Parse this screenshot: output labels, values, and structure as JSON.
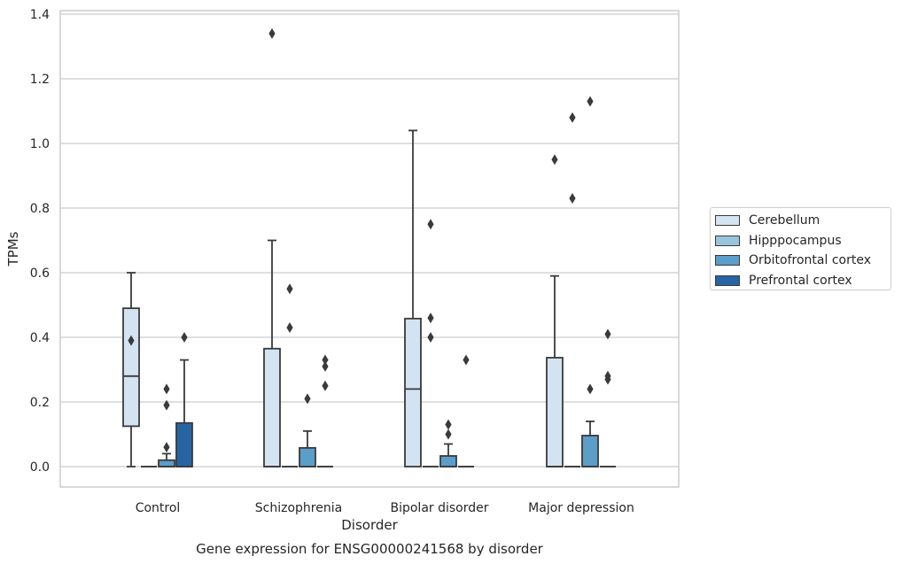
{
  "chart_data": {
    "type": "box",
    "title": "",
    "caption": "Gene expression for ENSG00000241568 by disorder",
    "xlabel": "Disorder",
    "ylabel": "TPMs",
    "ylim": [
      -0.065,
      1.41
    ],
    "yticks": [
      0.0,
      0.2,
      0.4,
      0.6,
      0.8,
      1.0,
      1.2,
      1.4
    ],
    "ytick_labels": [
      "0.0",
      "0.2",
      "0.4",
      "0.6",
      "0.8",
      "1.0",
      "1.2",
      "1.4"
    ],
    "grid": "horizontal",
    "legend_position": "right",
    "categories": [
      "Control",
      "Schizophrenia",
      "Bipolar disorder",
      "Major depression"
    ],
    "series": [
      {
        "name": "Cerebellum",
        "color": "#d4e3f1",
        "boxes": [
          {
            "q1": 0.125,
            "median": 0.28,
            "q3": 0.49,
            "whisker_low": 0.0,
            "whisker_high": 0.6,
            "fliers": [
              0.39
            ]
          },
          {
            "q1": 0.0,
            "median": 0.0,
            "q3": 0.365,
            "whisker_low": 0.0,
            "whisker_high": 0.7,
            "fliers": [
              1.34
            ]
          },
          {
            "q1": 0.0,
            "median": 0.24,
            "q3": 0.458,
            "whisker_low": 0.0,
            "whisker_high": 1.04,
            "fliers": []
          },
          {
            "q1": 0.0,
            "median": 0.0,
            "q3": 0.337,
            "whisker_low": 0.0,
            "whisker_high": 0.59,
            "fliers": [
              0.95
            ]
          }
        ]
      },
      {
        "name": "Hipppocampus",
        "color": "#9ac3dc",
        "boxes": [
          {
            "q1": 0.0,
            "median": 0.0,
            "q3": 0.0,
            "whisker_low": 0.0,
            "whisker_high": 0.0,
            "fliers": []
          },
          {
            "q1": 0.0,
            "median": 0.0,
            "q3": 0.0,
            "whisker_low": 0.0,
            "whisker_high": 0.0,
            "fliers": [
              0.55,
              0.43
            ]
          },
          {
            "q1": 0.0,
            "median": 0.0,
            "q3": 0.0,
            "whisker_low": 0.0,
            "whisker_high": 0.0,
            "fliers": [
              0.75,
              0.46,
              0.4
            ]
          },
          {
            "q1": 0.0,
            "median": 0.0,
            "q3": 0.0,
            "whisker_low": 0.0,
            "whisker_high": 0.0,
            "fliers": [
              1.08,
              0.83
            ]
          }
        ]
      },
      {
        "name": "Orbitofrontal cortex",
        "color": "#5a9ec9",
        "boxes": [
          {
            "q1": 0.0,
            "median": 0.0,
            "q3": 0.02,
            "whisker_low": 0.0,
            "whisker_high": 0.04,
            "fliers": [
              0.24,
              0.19,
              0.06
            ]
          },
          {
            "q1": 0.0,
            "median": 0.0,
            "q3": 0.058,
            "whisker_low": 0.0,
            "whisker_high": 0.11,
            "fliers": [
              0.21
            ]
          },
          {
            "q1": 0.0,
            "median": 0.0,
            "q3": 0.033,
            "whisker_low": 0.0,
            "whisker_high": 0.07,
            "fliers": [
              0.13,
              0.1
            ]
          },
          {
            "q1": 0.0,
            "median": 0.0,
            "q3": 0.096,
            "whisker_low": 0.0,
            "whisker_high": 0.14,
            "fliers": [
              1.13,
              0.24
            ]
          }
        ]
      },
      {
        "name": "Prefrontal cortex",
        "color": "#2764a4",
        "boxes": [
          {
            "q1": 0.0,
            "median": 0.0,
            "q3": 0.135,
            "whisker_low": 0.0,
            "whisker_high": 0.33,
            "fliers": [
              0.4
            ]
          },
          {
            "q1": 0.0,
            "median": 0.0,
            "q3": 0.0,
            "whisker_low": 0.0,
            "whisker_high": 0.0,
            "fliers": [
              0.33,
              0.31,
              0.25
            ]
          },
          {
            "q1": 0.0,
            "median": 0.0,
            "q3": 0.0,
            "whisker_low": 0.0,
            "whisker_high": 0.0,
            "fliers": [
              0.33
            ]
          },
          {
            "q1": 0.0,
            "median": 0.0,
            "q3": 0.0,
            "whisker_low": 0.0,
            "whisker_high": 0.0,
            "fliers": [
              0.41,
              0.28,
              0.27
            ]
          }
        ]
      }
    ]
  }
}
